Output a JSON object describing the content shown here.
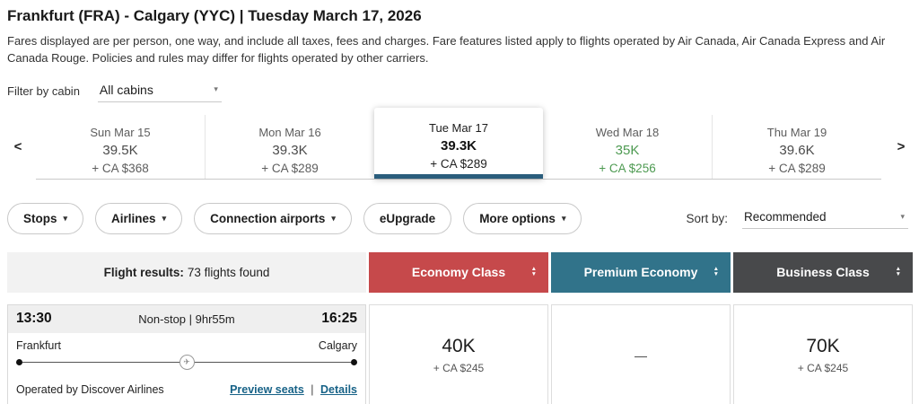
{
  "icons": {
    "caret_down": "▾",
    "chevron_left": "<",
    "chevron_right": ">",
    "sort_up": "▲",
    "sort_down": "▼",
    "plane": "✈"
  },
  "colors": {
    "economy_red": "#c6494b",
    "premium_teal": "#31738a",
    "business_dark": "#48494b",
    "deal_green": "#4d9a51",
    "selected_blue": "#2a5d7c",
    "link_teal": "#176287"
  },
  "header": {
    "title": "Frankfurt (FRA) - Calgary (YYC)  |  Tuesday March 17, 2026",
    "disclaimer": "Fares displayed are per person, one way, and include all taxes, fees and charges. Fare features listed apply to flights operated by Air Canada, Air Canada Express and Air Canada Rouge. Policies and rules may differ for flights operated by other carriers."
  },
  "cabin_filter": {
    "label": "Filter by cabin",
    "value": "All cabins"
  },
  "date_carousel": {
    "days": [
      {
        "date": "Sun Mar 15",
        "points": "39.5K",
        "cash": "+ CA $368",
        "selected": false,
        "highlight": false
      },
      {
        "date": "Mon Mar 16",
        "points": "39.3K",
        "cash": "+ CA $289",
        "selected": false,
        "highlight": false
      },
      {
        "date": "Tue Mar 17",
        "points": "39.3K",
        "cash": "+ CA $289",
        "selected": true,
        "highlight": false
      },
      {
        "date": "Wed Mar 18",
        "points": "35K",
        "cash": "+ CA $256",
        "selected": false,
        "highlight": true
      },
      {
        "date": "Thu Mar 19",
        "points": "39.6K",
        "cash": "+ CA $289",
        "selected": false,
        "highlight": false
      }
    ]
  },
  "filters": {
    "buttons": [
      {
        "label": "Stops",
        "has_caret": true
      },
      {
        "label": "Airlines",
        "has_caret": true
      },
      {
        "label": "Connection airports",
        "has_caret": true
      },
      {
        "label": "eUpgrade",
        "has_caret": false
      },
      {
        "label": "More options",
        "has_caret": true
      }
    ],
    "sort": {
      "label": "Sort by:",
      "value": "Recommended"
    }
  },
  "results_header": {
    "summary_label": "Flight results:",
    "summary_value": "73 flights found",
    "columns": [
      {
        "label": "Economy Class",
        "color": "#c6494b"
      },
      {
        "label": "Premium Economy",
        "color": "#31738a"
      },
      {
        "label": "Business Class",
        "color": "#48494b"
      }
    ]
  },
  "flight": {
    "depart_time": "13:30",
    "arrive_time": "16:25",
    "stops_duration": "Non-stop  |  9hr55m",
    "origin": "Frankfurt",
    "destination": "Calgary",
    "operated_by": "Operated by Discover Airlines",
    "links": {
      "preview": "Preview seats",
      "separator": "|",
      "details": "Details"
    },
    "fares": [
      {
        "cabin": "Economy Class",
        "points": "40K",
        "cash": "+ CA $245",
        "empty": false
      },
      {
        "cabin": "Premium Economy",
        "points": "—",
        "cash": "",
        "empty": true
      },
      {
        "cabin": "Business Class",
        "points": "70K",
        "cash": "+ CA $245",
        "empty": false
      }
    ]
  }
}
